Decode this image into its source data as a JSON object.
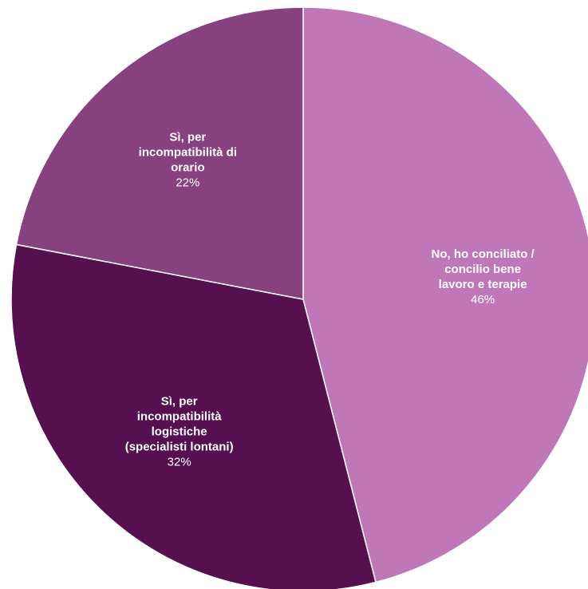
{
  "chart_data": {
    "type": "pie",
    "title": "",
    "start_angle_deg": 0,
    "direction": "clockwise",
    "slices": [
      {
        "label_lines": [
          "No, ho conciliato /",
          "concilio bene",
          "lavoro e terapie"
        ],
        "value": 46,
        "value_label": "46%",
        "color": "#c077b8"
      },
      {
        "label_lines": [
          "Sì, per",
          "incompatibilità",
          "logistiche",
          "(specialisti lontani)"
        ],
        "value": 32,
        "value_label": "32%",
        "color": "#57104f"
      },
      {
        "label_lines": [
          "Sì, per",
          "incompatibilità di",
          "orario"
        ],
        "value": 22,
        "value_label": "22%",
        "color": "#87417f"
      }
    ]
  }
}
